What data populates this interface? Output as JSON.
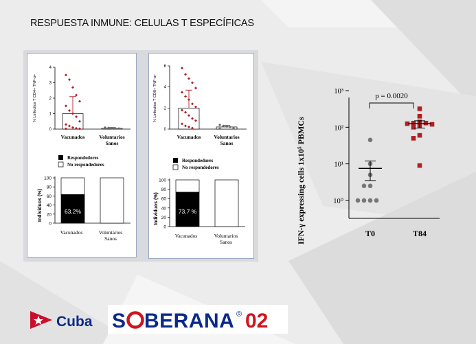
{
  "slide_title": "RESPUESTA INMUNE:  CELULAS T ESPECÍFICAS",
  "colors": {
    "red": "#b01f24",
    "gray": "#777777",
    "black": "#000000",
    "frame": "#9aa8c4",
    "panel": "#d9dade"
  },
  "left_panel": {
    "scatter": {
      "ylabel": "% Linfocitos T CD4+ TNF-α+",
      "categories": [
        "Vacunados",
        "Voluntarios Sanos"
      ],
      "ylim": [
        0,
        4
      ],
      "yticks": [
        "0",
        "1",
        "2",
        "3",
        "4"
      ]
    },
    "legend": [
      "Respondedores",
      "No respondedores"
    ],
    "bars": {
      "ylabel": "Individuos (%)",
      "categories": [
        "Vacunados",
        "Voluntarios Sanos"
      ],
      "yticks": [
        "0",
        "20",
        "40",
        "60",
        "80",
        "100"
      ],
      "label": "63.2%"
    }
  },
  "middle_panel": {
    "scatter": {
      "ylabel": "% Linfocitos T CD8+ TNF-α+",
      "categories": [
        "Vacunados",
        "Voluntarios Sanos"
      ],
      "ylim": [
        0,
        6
      ],
      "yticks": [
        "0",
        "2",
        "4",
        "6"
      ]
    },
    "legend": [
      "Respondedores",
      "No respondedores"
    ],
    "bars": {
      "ylabel": "Individuos (%)",
      "categories": [
        "Vacunados",
        "Voluntarios Sanos"
      ],
      "yticks": [
        "0",
        "20",
        "40",
        "60",
        "80",
        "100"
      ],
      "label": "73.7 %"
    }
  },
  "right_chart": {
    "ylabel": "IFN-γ expressing cells 1x10⁵ PBMCs",
    "categories": [
      "T0",
      "T84"
    ],
    "pvalue": "p = 0.0020",
    "yticks": [
      "10⁰",
      "10¹",
      "10²",
      "10³"
    ]
  },
  "logos": {
    "cuba": "Cuba",
    "soberana_a": "S",
    "soberana_b": "BERANA",
    "soberana_reg": "®",
    "soberana_num": "02"
  },
  "chart_data": [
    {
      "type": "scatter",
      "title": "",
      "ylabel": "% Linfocitos T CD4+ TNF-α+",
      "ylim": [
        0,
        4
      ],
      "categories": [
        "Vacunados",
        "Voluntarios Sanos"
      ],
      "bar_means": [
        1.0,
        0.05
      ],
      "error_upper": [
        2.1,
        0.1
      ],
      "points": {
        "Vacunados": [
          3.5,
          3.2,
          2.7,
          2.2,
          1.8,
          1.5,
          1.2,
          1.0,
          0.8,
          0.5,
          0.3,
          0.2,
          0.1,
          0.05,
          0.02,
          0.02
        ],
        "Voluntarios Sanos": [
          0.1,
          0.08,
          0.06,
          0.05,
          0.04,
          0.03
        ]
      }
    },
    {
      "type": "bar",
      "title": "",
      "ylabel": "Individuos (%)",
      "ylim": [
        0,
        100
      ],
      "categories": [
        "Vacunados",
        "Voluntarios Sanos"
      ],
      "series": [
        {
          "name": "Respondedores",
          "values": [
            63.2,
            0
          ]
        },
        {
          "name": "No respondedores",
          "values": [
            36.8,
            100
          ]
        }
      ]
    },
    {
      "type": "scatter",
      "title": "",
      "ylabel": "% Linfocitos T CD8+ TNF-α+",
      "ylim": [
        0,
        6
      ],
      "categories": [
        "Vacunados",
        "Voluntarios Sanos"
      ],
      "bar_means": [
        2.0,
        0.2
      ],
      "error_upper": [
        3.7,
        0.35
      ],
      "points": {
        "Vacunados": [
          5.8,
          5.2,
          4.8,
          4.4,
          3.9,
          3.5,
          3.1,
          2.8,
          2.4,
          2.1,
          1.8,
          1.6,
          1.3,
          1.0,
          0.8,
          0.5,
          0.3,
          0.2,
          0.1
        ],
        "Voluntarios Sanos": [
          0.4,
          0.3,
          0.25,
          0.2,
          0.1,
          0.05
        ]
      }
    },
    {
      "type": "bar",
      "title": "",
      "ylabel": "Individuos (%)",
      "ylim": [
        0,
        100
      ],
      "categories": [
        "Vacunados",
        "Voluntarios Sanos"
      ],
      "series": [
        {
          "name": "Respondedores",
          "values": [
            73.7,
            0
          ]
        },
        {
          "name": "No respondedores",
          "values": [
            26.3,
            100
          ]
        }
      ]
    },
    {
      "type": "scatter",
      "title": "",
      "ylabel": "IFN-γ expressing cells 1x10⁵ PBMCs",
      "yscale": "log",
      "ylim": [
        0.5,
        1000
      ],
      "categories": [
        "T0",
        "T84"
      ],
      "annotation": "p = 0.0020",
      "mean": [
        7.5,
        125
      ],
      "sem_low": [
        3.5,
        95
      ],
      "sem_high": [
        12,
        150
      ],
      "points": {
        "T0": [
          45,
          10,
          5,
          2.5,
          2.5,
          1,
          1,
          1,
          1
        ],
        "T84": [
          320,
          200,
          140,
          130,
          130,
          125,
          120,
          110,
          100,
          60,
          50,
          9
        ]
      }
    }
  ]
}
